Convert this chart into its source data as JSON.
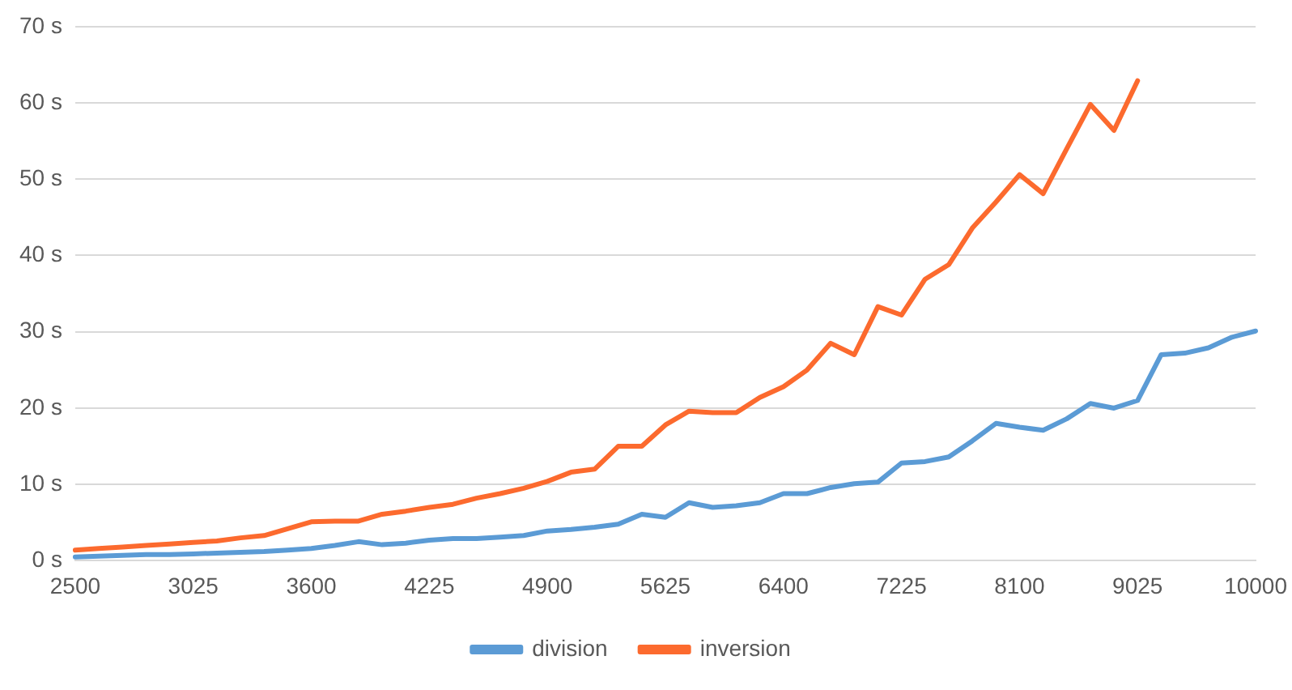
{
  "chart_data": {
    "type": "line",
    "categories": [
      "2500",
      null,
      null,
      null,
      null,
      "3025",
      null,
      null,
      null,
      null,
      "3600",
      null,
      null,
      null,
      null,
      "4225",
      null,
      null,
      null,
      null,
      "4900",
      null,
      null,
      null,
      null,
      "5625",
      null,
      null,
      null,
      null,
      "6400",
      null,
      null,
      null,
      null,
      "7225",
      null,
      null,
      null,
      null,
      "8100",
      null,
      null,
      null,
      null,
      "9025",
      null,
      null,
      null,
      null,
      "10000"
    ],
    "series": [
      {
        "name": "division",
        "color": "#5b9bd5",
        "values": [
          0.5,
          0.6,
          0.7,
          0.8,
          0.8,
          0.9,
          1.0,
          1.1,
          1.2,
          1.4,
          1.6,
          2.0,
          2.5,
          2.1,
          2.3,
          2.7,
          2.9,
          2.9,
          3.1,
          3.3,
          3.9,
          4.1,
          4.4,
          4.8,
          6.1,
          5.7,
          7.6,
          7.0,
          7.2,
          7.6,
          8.8,
          8.8,
          9.6,
          10.1,
          10.3,
          12.8,
          13.0,
          13.6,
          15.7,
          18.0,
          17.5,
          17.1,
          18.6,
          20.6,
          20.0,
          21.0,
          27.0,
          27.2,
          27.9,
          29.3,
          30.1
        ]
      },
      {
        "name": "inversion",
        "color": "#fc6a2e",
        "values": [
          1.4,
          1.6,
          1.8,
          2.0,
          2.2,
          2.4,
          2.6,
          3.0,
          3.3,
          4.2,
          5.1,
          5.2,
          5.2,
          6.1,
          6.5,
          7.0,
          7.4,
          8.2,
          8.8,
          9.5,
          10.4,
          11.6,
          12.0,
          15.0,
          15.0,
          17.8,
          19.6,
          19.4,
          19.4,
          21.4,
          22.8,
          25.0,
          28.5,
          27.0,
          33.3,
          32.2,
          36.9,
          38.8,
          43.6,
          47.0,
          50.6,
          48.1,
          54.0,
          59.8,
          56.4,
          62.9,
          null,
          null,
          null,
          null,
          null
        ]
      }
    ],
    "ylim": [
      0,
      70
    ],
    "yticks": [
      {
        "value": 0,
        "label": "0 s"
      },
      {
        "value": 10,
        "label": "10 s"
      },
      {
        "value": 20,
        "label": "20 s"
      },
      {
        "value": 30,
        "label": "30 s"
      },
      {
        "value": 40,
        "label": "40 s"
      },
      {
        "value": 50,
        "label": "50 s"
      },
      {
        "value": 60,
        "label": "60 s"
      },
      {
        "value": 70,
        "label": "70 s"
      }
    ],
    "grid": "y",
    "legend": "bottom",
    "marker": "none",
    "line_style": "solid"
  }
}
